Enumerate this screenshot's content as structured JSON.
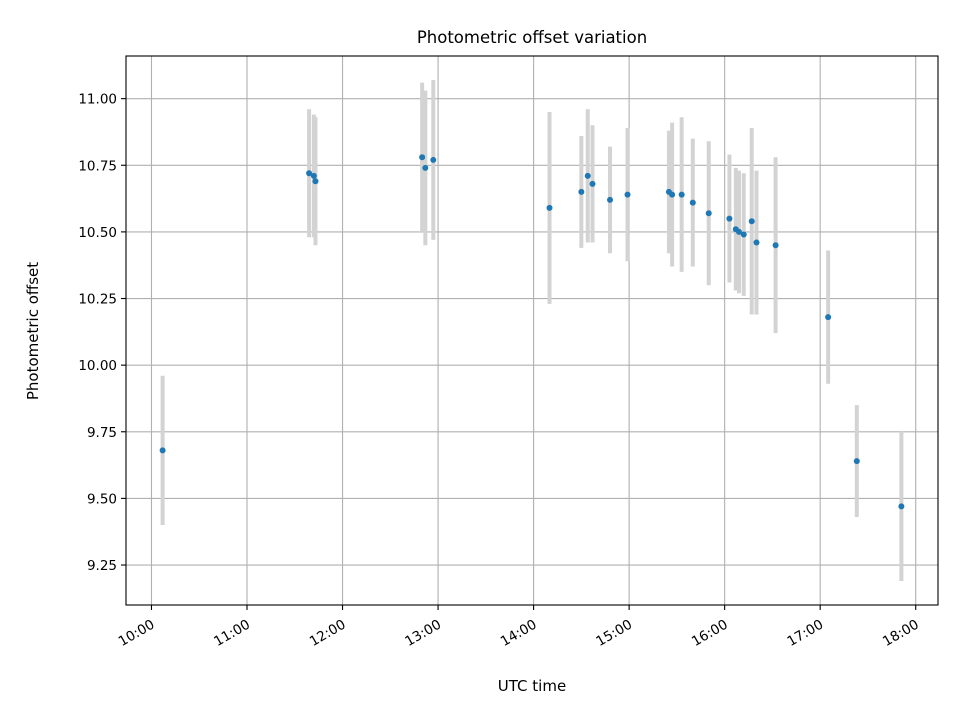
{
  "chart_data": {
    "type": "scatter",
    "title": "Photometric offset variation",
    "xlabel": "UTC time",
    "ylabel": "Photometric offset",
    "x_ticks": [
      "10:00",
      "11:00",
      "12:00",
      "13:00",
      "14:00",
      "15:00",
      "16:00",
      "17:00",
      "18:00"
    ],
    "y_ticks": [
      "9.25",
      "9.50",
      "9.75",
      "10.00",
      "10.25",
      "10.50",
      "10.75",
      "11.00"
    ],
    "xlim": [
      "09:44",
      "18:14"
    ],
    "ylim": [
      9.1,
      11.16
    ],
    "grid": true,
    "errorbar_color": "#d3d3d3",
    "marker_color": "#1f77b4",
    "points": [
      {
        "t": "10:07",
        "y": 9.68,
        "err": 0.28
      },
      {
        "t": "11:39",
        "y": 10.72,
        "err": 0.24
      },
      {
        "t": "11:42",
        "y": 10.71,
        "err": 0.23
      },
      {
        "t": "11:43",
        "y": 10.69,
        "err": 0.24
      },
      {
        "t": "12:50",
        "y": 10.78,
        "err": 0.28
      },
      {
        "t": "12:52",
        "y": 10.74,
        "err": 0.29
      },
      {
        "t": "12:57",
        "y": 10.77,
        "err": 0.3
      },
      {
        "t": "14:10",
        "y": 10.59,
        "err": 0.36
      },
      {
        "t": "14:30",
        "y": 10.65,
        "err": 0.21
      },
      {
        "t": "14:34",
        "y": 10.71,
        "err": 0.25
      },
      {
        "t": "14:37",
        "y": 10.68,
        "err": 0.22
      },
      {
        "t": "14:48",
        "y": 10.62,
        "err": 0.2
      },
      {
        "t": "14:59",
        "y": 10.64,
        "err": 0.25
      },
      {
        "t": "15:25",
        "y": 10.65,
        "err": 0.23
      },
      {
        "t": "15:27",
        "y": 10.64,
        "err": 0.27
      },
      {
        "t": "15:33",
        "y": 10.64,
        "err": 0.29
      },
      {
        "t": "15:40",
        "y": 10.61,
        "err": 0.24
      },
      {
        "t": "15:50",
        "y": 10.57,
        "err": 0.27
      },
      {
        "t": "16:03",
        "y": 10.55,
        "err": 0.24
      },
      {
        "t": "16:07",
        "y": 10.51,
        "err": 0.23
      },
      {
        "t": "16:09",
        "y": 10.5,
        "err": 0.23
      },
      {
        "t": "16:12",
        "y": 10.49,
        "err": 0.23
      },
      {
        "t": "16:17",
        "y": 10.54,
        "err": 0.35
      },
      {
        "t": "16:20",
        "y": 10.46,
        "err": 0.27
      },
      {
        "t": "16:32",
        "y": 10.45,
        "err": 0.33
      },
      {
        "t": "17:05",
        "y": 10.18,
        "err": 0.25
      },
      {
        "t": "17:23",
        "y": 9.64,
        "err": 0.21
      },
      {
        "t": "17:51",
        "y": 9.47,
        "err": 0.28
      }
    ]
  }
}
